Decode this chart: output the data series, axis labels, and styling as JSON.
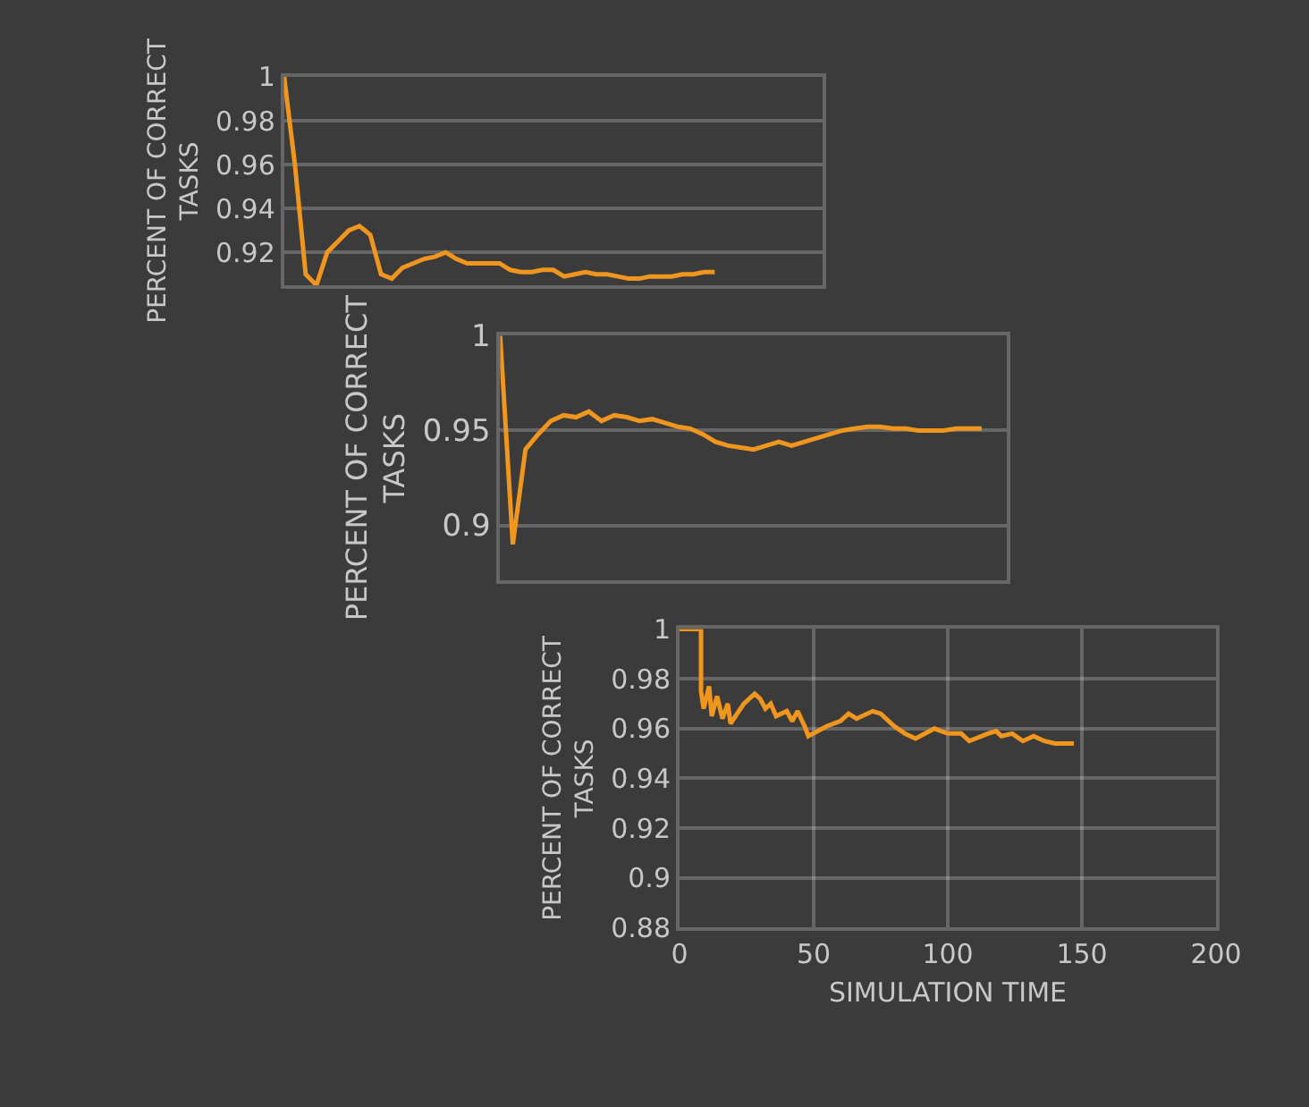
{
  "chart_data": [
    {
      "type": "line",
      "ylabel": "PERCENT OF CORRECT TASKS",
      "ylim": [
        0.905,
        1
      ],
      "yticks": [
        0.92,
        0.94,
        0.96,
        0.98,
        1
      ],
      "grid": "y",
      "tick_labels": "y",
      "categories": [
        null,
        null,
        null,
        null,
        null,
        null,
        null,
        null,
        null,
        null,
        null,
        null,
        null,
        null,
        null,
        null,
        null,
        null,
        null,
        null,
        null,
        null,
        null,
        null,
        null,
        null,
        null,
        null,
        null,
        null,
        null,
        null,
        null,
        null,
        null,
        null,
        null,
        null,
        null,
        null,
        null,
        null,
        null,
        null,
        null,
        null,
        null,
        null,
        null,
        null,
        null
      ],
      "series": [
        {
          "color": "#f0961e",
          "values": [
            1,
            0.96,
            0.91,
            0.905,
            0.92,
            0.925,
            0.93,
            0.932,
            0.928,
            0.91,
            0.908,
            0.913,
            0.915,
            0.917,
            0.918,
            0.92,
            0.917,
            0.915,
            0.915,
            0.915,
            0.915,
            0.912,
            0.911,
            0.911,
            0.912,
            0.912,
            0.909,
            0.91,
            0.911,
            0.91,
            0.91,
            0.909,
            0.908,
            0.908,
            0.909,
            0.909,
            0.909,
            0.91,
            0.91,
            0.911,
            0.911,
            null,
            null,
            null,
            null,
            null,
            null,
            null,
            null,
            null,
            null
          ]
        }
      ]
    },
    {
      "type": "line",
      "ylabel": "PERCENT OF CORRECT TASKS",
      "ylim": [
        0.871,
        1
      ],
      "yticks": [
        0.9,
        0.95,
        1
      ],
      "grid": "y",
      "tick_labels": "y",
      "categories": [
        null,
        null,
        null,
        null,
        null,
        null,
        null,
        null,
        null,
        null,
        null,
        null,
        null,
        null,
        null,
        null,
        null,
        null,
        null,
        null,
        null,
        null,
        null,
        null,
        null,
        null,
        null,
        null,
        null,
        null,
        null,
        null,
        null,
        null,
        null,
        null,
        null,
        null,
        null,
        null,
        null
      ],
      "series": [
        {
          "color": "#f0961e",
          "values": [
            1,
            0.89,
            0.94,
            0.948,
            0.955,
            0.958,
            0.957,
            0.96,
            0.955,
            0.958,
            0.957,
            0.955,
            0.956,
            0.954,
            0.952,
            0.951,
            0.948,
            0.944,
            0.942,
            0.941,
            0.94,
            0.942,
            0.944,
            0.942,
            0.944,
            0.946,
            0.948,
            0.95,
            0.951,
            0.952,
            0.952,
            0.951,
            0.951,
            0.95,
            0.95,
            0.95,
            0.951,
            0.951,
            0.951,
            null,
            null
          ]
        }
      ]
    },
    {
      "type": "line",
      "ylabel": "PERCENT OF CORRECT TASKS",
      "xlabel": "SIMULATION TIME",
      "xlim": [
        0,
        200
      ],
      "ylim": [
        0.88,
        1
      ],
      "xticks": [
        0,
        50,
        100,
        150,
        200
      ],
      "yticks": [
        0.88,
        0.9,
        0.92,
        0.94,
        0.96,
        0.98,
        1
      ],
      "grid": true,
      "x": [
        0,
        8,
        8,
        9,
        11,
        12,
        14,
        16,
        18,
        19,
        24,
        28,
        30,
        32,
        34,
        36,
        40,
        42,
        44,
        47,
        48,
        55,
        60,
        63,
        66,
        72,
        75,
        80,
        84,
        88,
        95,
        100,
        105,
        108,
        115,
        118,
        120,
        124,
        128,
        132,
        136,
        140,
        147
      ],
      "series": [
        {
          "color": "#f0961e",
          "values": [
            1,
            1,
            0.975,
            0.968,
            0.977,
            0.965,
            0.973,
            0.964,
            0.97,
            0.962,
            0.97,
            0.974,
            0.972,
            0.968,
            0.97,
            0.965,
            0.967,
            0.963,
            0.967,
            0.96,
            0.957,
            0.961,
            0.963,
            0.966,
            0.964,
            0.967,
            0.966,
            0.961,
            0.958,
            0.956,
            0.96,
            0.958,
            0.958,
            0.955,
            0.958,
            0.959,
            0.957,
            0.958,
            0.955,
            0.957,
            0.955,
            0.954,
            0.954
          ]
        }
      ]
    }
  ]
}
